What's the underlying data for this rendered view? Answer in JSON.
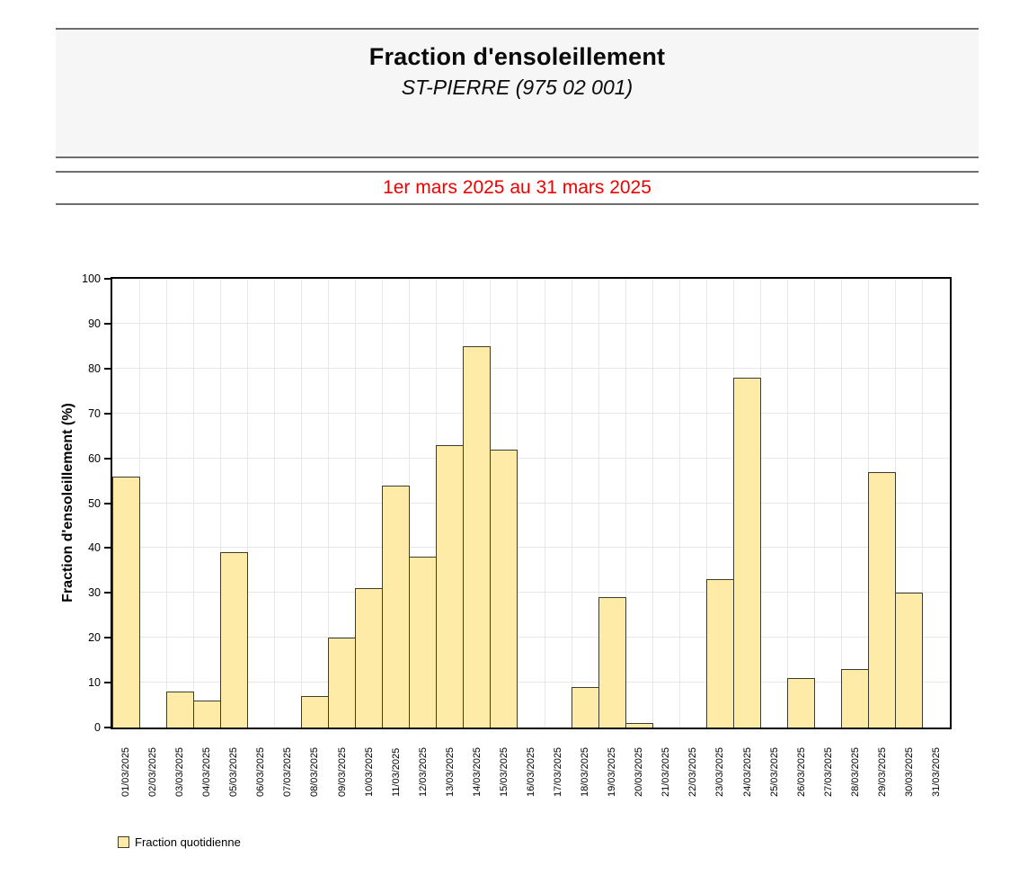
{
  "header": {
    "title": "Fraction d'ensoleillement",
    "subtitle": "ST-PIERRE (975 02 001)"
  },
  "period": {
    "label": "1er mars 2025 au 31 mars 2025"
  },
  "legend": {
    "label": "Fraction quotidienne"
  },
  "colors": {
    "accent_red": "#f20000",
    "bar_fill": "#fdeba7",
    "bar_border": "#3c3c30",
    "grid": "#e7e7e7",
    "header_bg": "#f6f6f6",
    "band_border": "#6e6e6e"
  },
  "chart_data": {
    "type": "bar",
    "title": "Fraction d'ensoleillement",
    "subtitle": "ST-PIERRE (975 02 001)",
    "xlabel": "",
    "ylabel": "Fraction d'ensoleillement (%)",
    "ylim": [
      0,
      100
    ],
    "yticks": [
      0,
      10,
      20,
      30,
      40,
      50,
      60,
      70,
      80,
      90,
      100
    ],
    "grid": true,
    "legend_position": "bottom-left",
    "series_name": "Fraction quotidienne",
    "categories": [
      "01/03/2025",
      "02/03/2025",
      "03/03/2025",
      "04/03/2025",
      "05/03/2025",
      "06/03/2025",
      "07/03/2025",
      "08/03/2025",
      "09/03/2025",
      "10/03/2025",
      "11/03/2025",
      "12/03/2025",
      "13/03/2025",
      "14/03/2025",
      "15/03/2025",
      "16/03/2025",
      "17/03/2025",
      "18/03/2025",
      "19/03/2025",
      "20/03/2025",
      "21/03/2025",
      "22/03/2025",
      "23/03/2025",
      "24/03/2025",
      "25/03/2025",
      "26/03/2025",
      "27/03/2025",
      "28/03/2025",
      "29/03/2025",
      "30/03/2025",
      "31/03/2025"
    ],
    "values": [
      56,
      0,
      8,
      6,
      39,
      0,
      0,
      7,
      20,
      31,
      54,
      38,
      63,
      85,
      62,
      0,
      0,
      9,
      29,
      1,
      0,
      0,
      33,
      78,
      0,
      11,
      0,
      13,
      57,
      30,
      0
    ]
  }
}
